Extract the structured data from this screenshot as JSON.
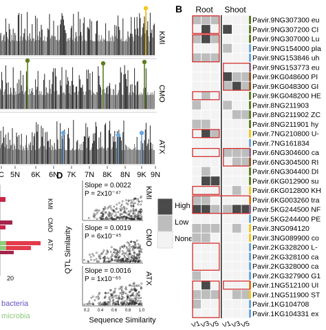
{
  "panel_letters": {
    "b": "B",
    "d": "D"
  },
  "manhattan": {
    "tracks": [
      {
        "label": "KMI",
        "peak_color": "#f2c81d"
      },
      {
        "label": "CMO",
        "peak_color": "#5f7d1e"
      },
      {
        "label": "ATX",
        "peak_color": "#6aa7dd"
      }
    ],
    "x_ticks": [
      "C",
      "5N",
      "6K",
      "6N",
      "7K",
      "7N",
      "8K",
      "8N",
      "9K",
      "9N"
    ]
  },
  "bar_panel": {
    "row_labels": [
      "KMI",
      "CMO",
      "ATX"
    ],
    "x_tick": "20",
    "legend_partial": [
      "bacteria",
      "microbia"
    ]
  },
  "scatter_panel": {
    "ylabel": "QTL Similarity",
    "xlabel": "Sequence Similarity",
    "x_ticks": [
      "0.2",
      "0.4",
      "0.6",
      "0.8",
      "1.0"
    ],
    "rows": [
      {
        "label": "KMI",
        "slope": "Slope = 0.0022",
        "p": "P = 2x10⁻⁴⁷"
      },
      {
        "label": "CMO",
        "slope": "Slope = 0.0019",
        "p": "P = 6x10⁻⁴⁵"
      },
      {
        "label": "ATX",
        "slope": "Slope = 0.0016",
        "p": "P = 1x10⁻⁶⁵"
      }
    ]
  },
  "legend": {
    "items": [
      "High",
      "Low",
      "None"
    ],
    "colors": [
      "#4a4a4a",
      "#bdbdbd",
      "#f3f3f3"
    ]
  },
  "heatmap": {
    "group_headers": [
      "Root",
      "Shoot"
    ],
    "col_labels": [
      "V1",
      "V3",
      "V5",
      "V1",
      "V3",
      "V5"
    ],
    "genes": [
      "Pavir.9NG307300 eu",
      "Pavir.9NG307200 CI",
      "Pavir.9NG307000 Lu",
      "Pavir.9NG154000 pla",
      "Pavir.9NG153846 uh",
      "Pavir.9NG153773 eu",
      "Pavir.9KG048600 PI",
      "Pavir.9KG048300 GI",
      "Pavir.9KG048200 HE",
      "Pavir.8NG211903",
      "Pavir.8NG211902 ZC",
      "Pavir.8NG211901 hy",
      "Pavir.7NG210800 U-",
      "Pavir.7NG161834",
      "Pavir.6NG304600 ca",
      "Pavir.6NG304500 RI",
      "Pavir.6NG304400 DI",
      "Pavir.6KG012900 su",
      "Pavir.6KG012800 KH",
      "Pavir.6KG003260 tra",
      "Pavir.5KG244500 NF",
      "Pavir.5KG244400 PE",
      "Pavir.3NG094120",
      "Pavir.3NG089900 co",
      "Pavir.2KG328200 L-",
      "Pavir.2KG328100 ca",
      "Pavir.2KG328000 ca",
      "Pavir.2KG327900 G1",
      "Pavir.1NG512100 UI",
      "Pavir.1NG511900 ST",
      "Pavir.1KG104708",
      "Pavir.1KG104331 ex"
    ],
    "side_colors": [
      "#5f7d1e",
      "#5f7d1e",
      "#5f7d1e",
      "#6aa7dd",
      "#6aa7dd",
      "#6aa7dd",
      "#5f7d1e",
      "#5f7d1e",
      "#5f7d1e",
      "#5f7d1e",
      "#5f7d1e",
      "#5f7d1e",
      "#f2c81d",
      "#6aa7dd",
      "#6aa7dd",
      "#5f7d1e",
      "#5f7d1e",
      "#5f7d1e",
      "#f2c81d",
      "#f2c81d",
      "#6aa7dd",
      "#6aa7dd",
      "#f2c81d",
      "#f2c81d",
      "#6aa7dd",
      "#6aa7dd",
      "#6aa7dd",
      "#6aa7dd",
      "#f2c81d",
      "#f2c81d",
      "#6aa7dd",
      "#6aa7dd"
    ],
    "levels": [
      [
        2,
        2,
        2,
        1,
        1,
        1
      ],
      [
        1,
        3,
        1,
        3,
        1,
        1
      ],
      [
        2,
        3,
        2,
        1,
        1,
        1
      ],
      [
        1,
        1,
        1,
        2,
        1,
        1
      ],
      [
        2,
        2,
        2,
        1,
        1,
        1
      ],
      [
        1,
        1,
        1,
        1,
        1,
        1
      ],
      [
        1,
        1,
        1,
        3,
        2,
        2
      ],
      [
        1,
        1,
        1,
        2,
        3,
        2
      ],
      [
        1,
        2,
        1,
        1,
        1,
        1
      ],
      [
        2,
        1,
        1,
        2,
        1,
        1
      ],
      [
        1,
        1,
        1,
        1,
        2,
        2
      ],
      [
        2,
        2,
        1,
        1,
        1,
        1
      ],
      [
        1,
        3,
        2,
        1,
        1,
        1
      ],
      [
        1,
        1,
        1,
        1,
        1,
        1
      ],
      [
        1,
        1,
        1,
        2,
        2,
        2
      ],
      [
        1,
        1,
        1,
        1,
        2,
        2
      ],
      [
        1,
        2,
        1,
        1,
        1,
        1
      ],
      [
        1,
        3,
        3,
        1,
        1,
        1
      ],
      [
        1,
        1,
        1,
        1,
        2,
        1
      ],
      [
        2,
        2,
        1,
        1,
        1,
        1
      ],
      [
        3,
        3,
        2,
        2,
        3,
        3
      ],
      [
        1,
        1,
        1,
        1,
        1,
        1
      ],
      [
        2,
        2,
        2,
        1,
        2,
        1
      ],
      [
        2,
        2,
        1,
        1,
        1,
        1
      ],
      [
        1,
        1,
        1,
        1,
        1,
        1
      ],
      [
        1,
        1,
        1,
        1,
        1,
        1
      ],
      [
        1,
        1,
        1,
        1,
        1,
        1
      ],
      [
        2,
        1,
        1,
        1,
        1,
        1
      ],
      [
        1,
        3,
        1,
        1,
        1,
        1
      ],
      [
        2,
        2,
        2,
        1,
        2,
        2
      ],
      [
        2,
        1,
        1,
        1,
        1,
        1
      ],
      [
        1,
        1,
        1,
        1,
        1,
        1
      ]
    ],
    "boxes": [
      {
        "start": 1,
        "end": 2,
        "c0": 0,
        "c1": 2
      },
      {
        "start": 3,
        "end": 5,
        "c0": 0,
        "c1": 2
      },
      {
        "start": 6,
        "end": 8,
        "c0": 3,
        "c1": 5
      },
      {
        "start": 9,
        "end": 9,
        "c0": 0,
        "c1": 2
      },
      {
        "start": 13,
        "end": 13,
        "c0": 0,
        "c1": 2
      },
      {
        "start": 15,
        "end": 15,
        "c0": 0,
        "c1": 2
      },
      {
        "start": 15,
        "end": 16,
        "c0": 3,
        "c1": 5
      },
      {
        "start": 19,
        "end": 19,
        "c0": 0,
        "c1": 2
      },
      {
        "start": 20,
        "end": 21,
        "c0": 0,
        "c1": 5
      },
      {
        "start": 25,
        "end": 27,
        "c0": 0,
        "c1": 2
      },
      {
        "start": 29,
        "end": 32,
        "c0": 0,
        "c1": 2
      },
      {
        "start": 29,
        "end": 29,
        "c0": 3,
        "c1": 5
      }
    ]
  }
}
